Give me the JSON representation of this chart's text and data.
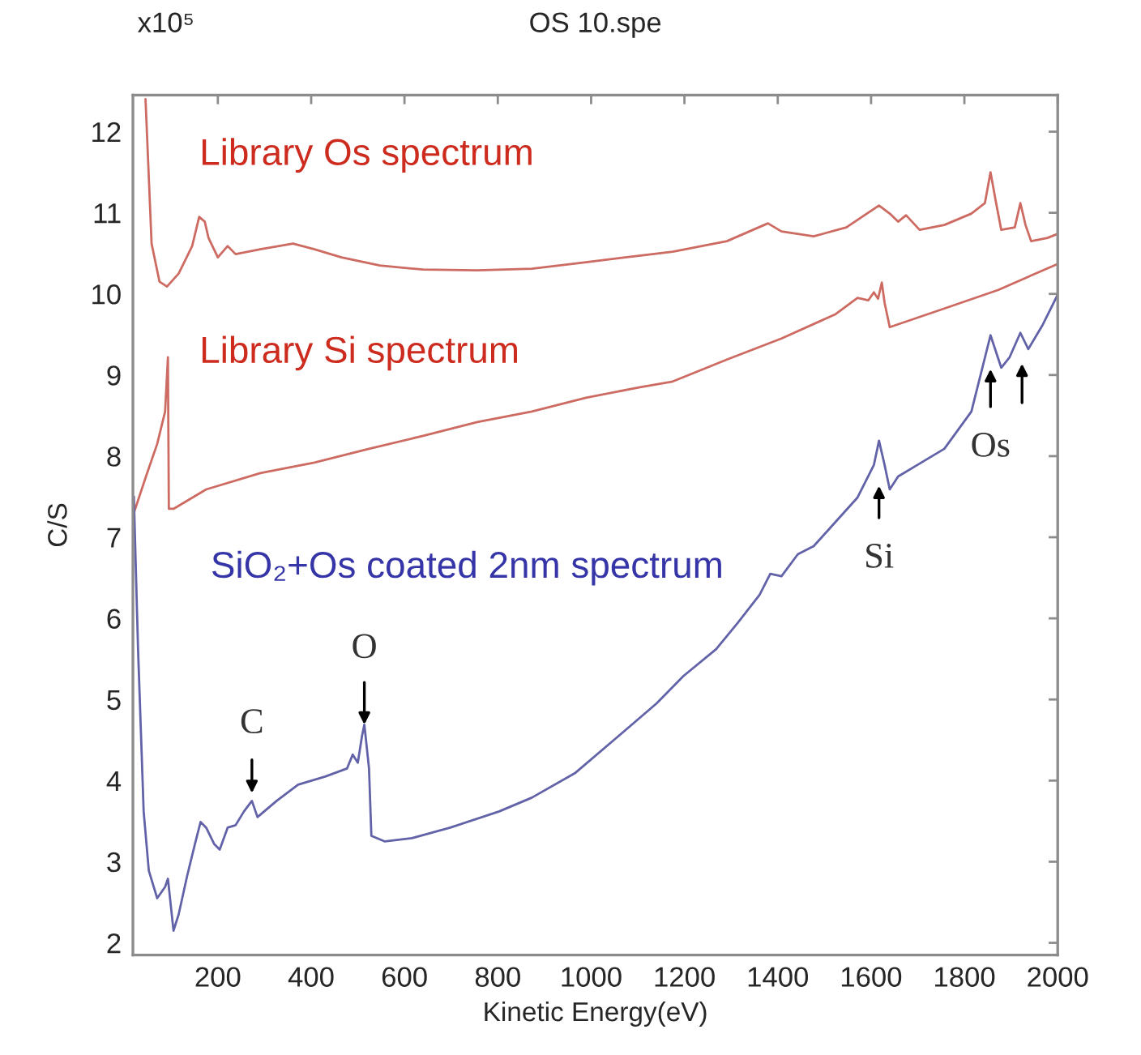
{
  "chart_data": {
    "type": "line",
    "title": "OS 10.spe",
    "xlabel": "Kinetic Energy(eV)",
    "ylabel": "C/S",
    "annotations": [
      "x10⁵",
      {
        "text": "C",
        "x": 273,
        "y": 3.75
      },
      {
        "text": "O",
        "x": 514,
        "y": 4.69
      },
      {
        "text": "Si",
        "x": 1617,
        "y": 8.19
      },
      {
        "text": "Os",
        "x": 1856,
        "y": 9.49
      }
    ],
    "xlim": [
      18,
      2000
    ],
    "xticks": [
      200,
      400,
      600,
      800,
      1000,
      1200,
      1400,
      1600,
      1800,
      2000
    ],
    "ylim": [
      1.85,
      12.45
    ],
    "yticks": [
      2,
      3,
      4,
      5,
      6,
      7,
      8,
      9,
      10,
      11,
      12
    ],
    "series": [
      {
        "name": "Library Os spectrum",
        "color": "#cd6b63",
        "x": [
          45,
          58,
          75,
          91,
          116,
          145,
          160,
          172,
          180,
          200,
          221,
          238,
          291,
          361,
          407,
          465,
          547,
          640,
          756,
          873,
          989,
          1059,
          1175,
          1291,
          1379,
          1408,
          1477,
          1547,
          1617,
          1640,
          1658,
          1675,
          1704,
          1757,
          1815,
          1844,
          1856,
          1867,
          1879,
          1908,
          1920,
          1931,
          1943,
          1978,
          2000
        ],
        "values": [
          12.4,
          10.62,
          10.15,
          10.09,
          10.25,
          10.59,
          10.95,
          10.89,
          10.69,
          10.45,
          10.59,
          10.49,
          10.55,
          10.62,
          10.55,
          10.45,
          10.35,
          10.3,
          10.29,
          10.31,
          10.39,
          10.44,
          10.52,
          10.65,
          10.87,
          10.77,
          10.71,
          10.82,
          11.09,
          10.99,
          10.89,
          10.97,
          10.79,
          10.85,
          10.99,
          11.12,
          11.5,
          11.15,
          10.79,
          10.82,
          11.12,
          10.85,
          10.65,
          10.69,
          10.74
        ]
      },
      {
        "name": "Library Si spectrum",
        "color": "#cd6b63",
        "x": [
          20,
          46,
          70,
          87,
          93,
          95,
          105,
          175,
          291,
          407,
          524,
          640,
          756,
          873,
          989,
          1105,
          1175,
          1291,
          1408,
          1524,
          1571,
          1594,
          1606,
          1615,
          1623,
          1629,
          1640,
          1757,
          1873,
          2000
        ],
        "values": [
          7.3,
          7.75,
          8.15,
          8.55,
          9.22,
          7.35,
          7.35,
          7.59,
          7.79,
          7.92,
          8.09,
          8.25,
          8.42,
          8.55,
          8.72,
          8.85,
          8.92,
          9.19,
          9.45,
          9.75,
          9.95,
          9.92,
          10.02,
          9.94,
          10.14,
          9.89,
          9.59,
          9.82,
          10.05,
          10.37
        ]
      },
      {
        "name": "SiO₂+Os coated 2nm spectrum",
        "color": "#6262a8",
        "x": [
          20,
          29,
          41,
          52,
          70,
          87,
          93,
          105,
          116,
          134,
          151,
          163,
          175,
          192,
          204,
          221,
          238,
          256,
          273,
          285,
          326,
          372,
          430,
          477,
          489,
          500,
          509,
          514,
          524,
          529,
          558,
          616,
          698,
          803,
          873,
          965,
          1059,
          1140,
          1198,
          1268,
          1315,
          1361,
          1384,
          1408,
          1443,
          1477,
          1524,
          1571,
          1606,
          1617,
          1629,
          1640,
          1658,
          1699,
          1757,
          1815,
          1856,
          1879,
          1897,
          1920,
          1937,
          1968,
          2000
        ],
        "values": [
          7.5,
          5.62,
          3.62,
          2.89,
          2.55,
          2.69,
          2.79,
          2.15,
          2.35,
          2.82,
          3.22,
          3.49,
          3.42,
          3.22,
          3.15,
          3.42,
          3.45,
          3.62,
          3.75,
          3.55,
          3.75,
          3.95,
          4.05,
          4.15,
          4.32,
          4.22,
          4.55,
          4.69,
          4.15,
          3.32,
          3.25,
          3.29,
          3.42,
          3.62,
          3.79,
          4.09,
          4.55,
          4.95,
          5.29,
          5.62,
          5.95,
          6.29,
          6.55,
          6.52,
          6.79,
          6.89,
          7.19,
          7.49,
          7.89,
          8.19,
          7.89,
          7.59,
          7.75,
          7.89,
          8.09,
          8.55,
          9.49,
          9.09,
          9.22,
          9.52,
          9.32,
          9.62,
          9.99
        ]
      }
    ]
  }
}
